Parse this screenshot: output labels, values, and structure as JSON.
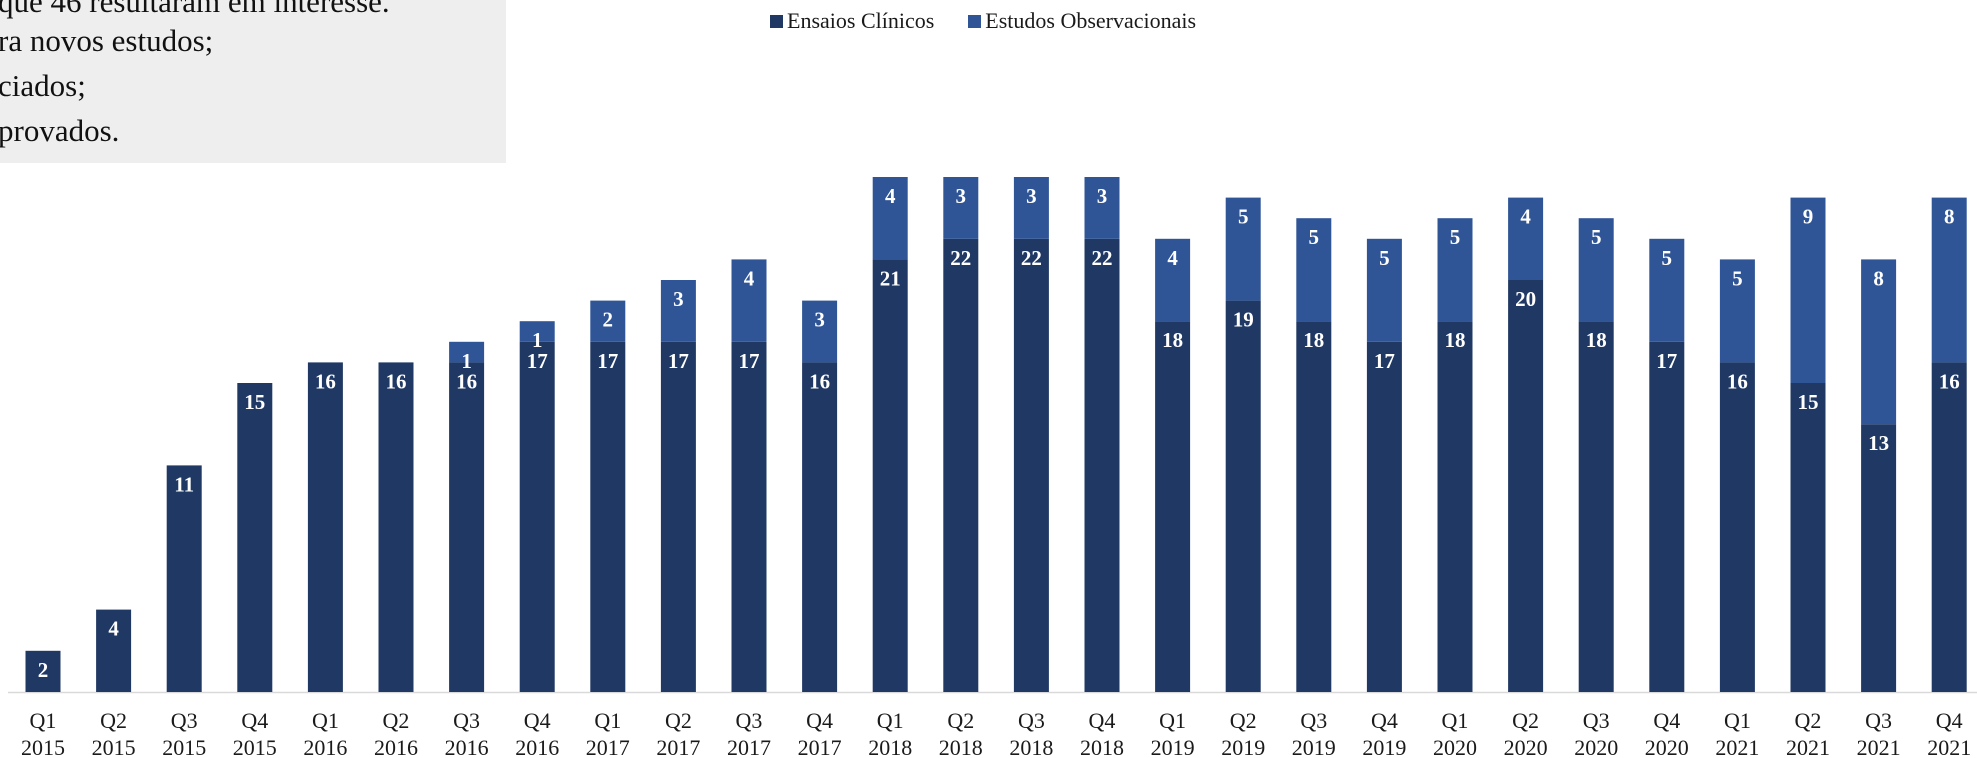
{
  "note": {
    "lines": [
      "que 46 resultaram em interesse.",
      "ra novos estudos;",
      "ciados;",
      "provados."
    ]
  },
  "colors": {
    "clinical": "#203864",
    "observational": "#2f5597",
    "note_background": "#eeeeee"
  },
  "chart_data": {
    "type": "bar",
    "stacked": true,
    "title": "",
    "xlabel": "",
    "ylabel": "",
    "ylim": [
      0,
      28
    ],
    "grid": false,
    "legend_position": "top-center",
    "categories": [
      "Q1 2015",
      "Q2 2015",
      "Q3 2015",
      "Q4 2015",
      "Q1 2016",
      "Q2 2016",
      "Q3 2016",
      "Q4 2016",
      "Q1 2017",
      "Q2 2017",
      "Q3 2017",
      "Q4 2017",
      "Q1 2018",
      "Q2 2018",
      "Q3 2018",
      "Q4 2018",
      "Q1 2019",
      "Q2 2019",
      "Q3 2019",
      "Q4 2019",
      "Q1 2020",
      "Q2 2020",
      "Q3 2020",
      "Q4 2020",
      "Q1 2021",
      "Q2 2021",
      "Q3 2021",
      "Q4 2021"
    ],
    "category_parts": [
      [
        "Q1",
        "2015"
      ],
      [
        "Q2",
        "2015"
      ],
      [
        "Q3",
        "2015"
      ],
      [
        "Q4",
        "2015"
      ],
      [
        "Q1",
        "2016"
      ],
      [
        "Q2",
        "2016"
      ],
      [
        "Q3",
        "2016"
      ],
      [
        "Q4",
        "2016"
      ],
      [
        "Q1",
        "2017"
      ],
      [
        "Q2",
        "2017"
      ],
      [
        "Q3",
        "2017"
      ],
      [
        "Q4",
        "2017"
      ],
      [
        "Q1",
        "2018"
      ],
      [
        "Q2",
        "2018"
      ],
      [
        "Q3",
        "2018"
      ],
      [
        "Q4",
        "2018"
      ],
      [
        "Q1",
        "2019"
      ],
      [
        "Q2",
        "2019"
      ],
      [
        "Q3",
        "2019"
      ],
      [
        "Q4",
        "2019"
      ],
      [
        "Q1",
        "2020"
      ],
      [
        "Q2",
        "2020"
      ],
      [
        "Q3",
        "2020"
      ],
      [
        "Q4",
        "2020"
      ],
      [
        "Q1",
        "2021"
      ],
      [
        "Q2",
        "2021"
      ],
      [
        "Q3",
        "2021"
      ],
      [
        "Q4",
        "2021"
      ]
    ],
    "series": [
      {
        "name": "Ensaios Clínicos",
        "values": [
          2,
          4,
          11,
          15,
          16,
          16,
          16,
          17,
          17,
          17,
          17,
          16,
          21,
          22,
          22,
          22,
          18,
          19,
          18,
          17,
          18,
          20,
          18,
          17,
          16,
          15,
          13,
          16
        ]
      },
      {
        "name": "Estudos Observacionais",
        "values": [
          0,
          0,
          0,
          0,
          0,
          0,
          1,
          1,
          2,
          3,
          4,
          3,
          4,
          3,
          3,
          3,
          4,
          5,
          5,
          5,
          5,
          4,
          5,
          5,
          5,
          9,
          8,
          8
        ]
      }
    ]
  }
}
